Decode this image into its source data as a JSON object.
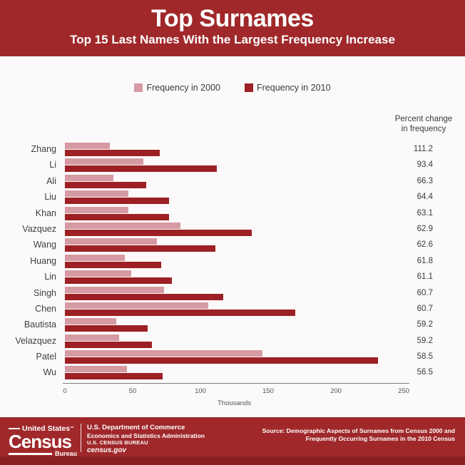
{
  "header": {
    "title": "Top Surnames",
    "subtitle": "Top 15 Last Names With the Largest Frequency Increase"
  },
  "legend": {
    "items": [
      {
        "label": "Frequency in 2000",
        "color": "#d69aa2"
      },
      {
        "label": "Frequency in 2010",
        "color": "#9c2024"
      }
    ]
  },
  "percent_column": {
    "header_line1": "Percent change",
    "header_line2": "in frequency"
  },
  "chart_data": {
    "type": "bar",
    "orientation": "horizontal",
    "title": "Top Surnames",
    "subtitle": "Top 15 Last Names With the Largest Frequency Increase",
    "categories": [
      "Zhang",
      "Li",
      "Ali",
      "Liu",
      "Khan",
      "Vazquez",
      "Wang",
      "Huang",
      "Lin",
      "Singh",
      "Chen",
      "Bautista",
      "Velazquez",
      "Patel",
      "Wu"
    ],
    "series": [
      {
        "name": "Frequency in 2000",
        "color": "#d69aa2",
        "values": [
          33,
          58,
          36,
          47,
          47,
          85,
          68,
          44,
          49,
          73,
          106,
          38,
          40,
          146,
          46
        ]
      },
      {
        "name": "Frequency in 2010",
        "color": "#9c2024",
        "values": [
          70,
          112,
          60,
          77,
          77,
          138,
          111,
          71,
          79,
          117,
          170,
          61,
          64,
          231,
          72
        ]
      }
    ],
    "percent_change": [
      111.2,
      93.4,
      66.3,
      64.4,
      63.1,
      62.9,
      62.6,
      61.8,
      61.1,
      60.7,
      60.7,
      59.2,
      59.2,
      58.5,
      56.5
    ],
    "xlabel": "Thousands",
    "xlim": [
      0,
      250
    ],
    "x_ticks": [
      0,
      50,
      100,
      150,
      200,
      250
    ],
    "values_unit": "thousands",
    "legend_position": "top",
    "grid": false
  },
  "footer": {
    "logo": {
      "top": "United States",
      "tm": "™",
      "main": "Census",
      "sub": "Bureau"
    },
    "agency_lines": [
      "U.S. Department of Commerce",
      "Economics and Statistics Administration",
      "U.S. CENSUS BUREAU",
      "census.gov"
    ],
    "source_line1": "Source: Demographic Aspects of Surnames from Census 2000 and",
    "source_line2": "Frequently Occurring Surnames in the 2010 Census"
  },
  "colors": {
    "band_red": "#a0282a",
    "band_red_dark": "#8b2022",
    "bar_2000": "#d69aa2",
    "bar_2010": "#9c2024",
    "text_dark": "#3b3b3b",
    "axis_gray": "#555555"
  }
}
